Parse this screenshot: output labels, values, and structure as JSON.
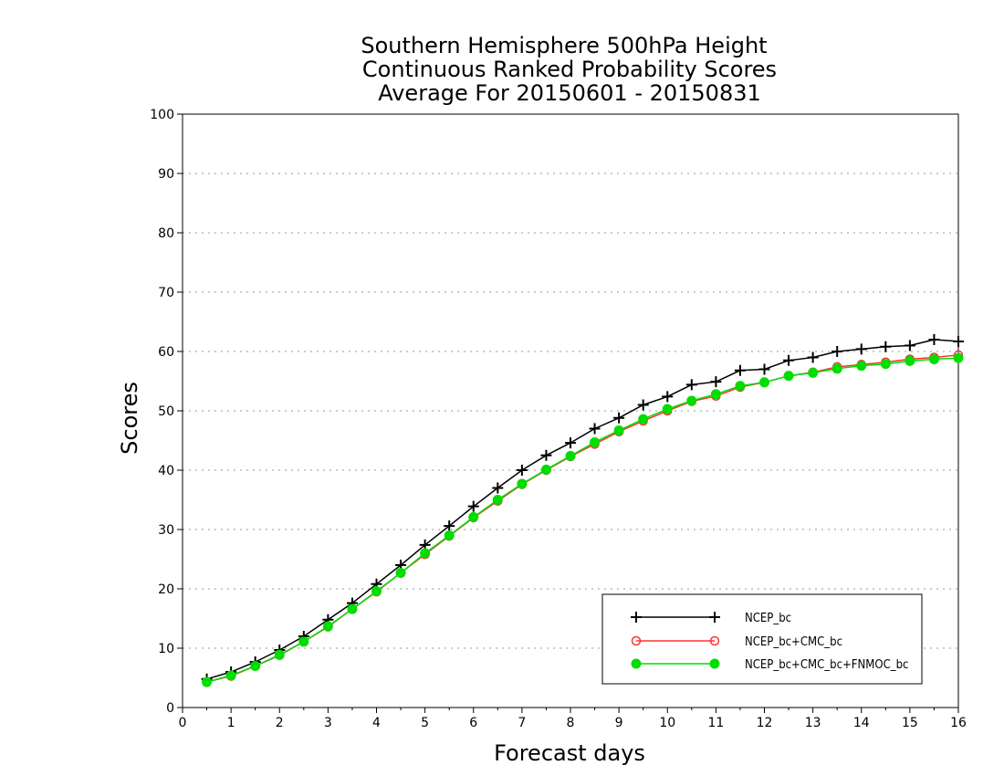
{
  "chart_data": {
    "type": "line",
    "title_lines": [
      "Southern Hemisphere 500hPa Height",
      "Continuous Ranked Probability Scores",
      "Average For 20150601 - 20150831"
    ],
    "xlabel": "Forecast days",
    "ylabel": "Scores",
    "xlim": [
      0,
      16
    ],
    "ylim": [
      0,
      100
    ],
    "xticks": [
      0,
      1,
      2,
      3,
      4,
      5,
      6,
      7,
      8,
      9,
      10,
      11,
      12,
      13,
      14,
      15,
      16
    ],
    "yticks": [
      0,
      10,
      20,
      30,
      40,
      50,
      60,
      70,
      80,
      90,
      100
    ],
    "grid": "horizontal dotted",
    "legend_position": "bottom-right",
    "x": [
      0.5,
      1,
      1.5,
      2,
      2.5,
      3,
      3.5,
      4,
      4.5,
      5,
      5.5,
      6,
      6.5,
      7,
      7.5,
      8,
      8.5,
      9,
      9.5,
      10,
      10.5,
      11,
      11.5,
      12,
      12.5,
      13,
      13.5,
      14,
      14.5,
      15,
      15.5,
      16
    ],
    "series": [
      {
        "name": "NCEP_bc",
        "color": "#000000",
        "marker": "plus",
        "values": [
          4.8,
          6.0,
          7.7,
          9.7,
          12.0,
          14.8,
          17.6,
          20.8,
          24.0,
          27.4,
          30.6,
          33.9,
          37.0,
          40.0,
          42.5,
          44.6,
          47.0,
          48.8,
          51.0,
          52.4,
          54.4,
          54.9,
          56.8,
          57.0,
          58.5,
          59.0,
          60.0,
          60.4,
          60.8,
          61.0,
          62.0,
          61.7
        ]
      },
      {
        "name": "NCEP_bc+CMC_bc",
        "color": "#ff3333",
        "marker": "open-circle",
        "values": [
          4.3,
          5.3,
          7.0,
          8.8,
          11.1,
          13.6,
          16.6,
          19.5,
          22.7,
          25.8,
          28.9,
          32.0,
          34.8,
          37.6,
          40.0,
          42.3,
          44.4,
          46.5,
          48.3,
          50.0,
          51.6,
          52.5,
          54.0,
          54.8,
          55.9,
          56.5,
          57.4,
          57.8,
          58.2,
          58.7,
          59.0,
          59.4
        ]
      },
      {
        "name": "NCEP_bc+CMC_bc+FNMOC_bc",
        "color": "#00dd00",
        "marker": "filled-circle",
        "values": [
          4.3,
          5.4,
          7.0,
          8.9,
          11.1,
          13.7,
          16.6,
          19.6,
          22.7,
          26.0,
          29.0,
          32.1,
          35.0,
          37.7,
          40.1,
          42.4,
          44.7,
          46.7,
          48.6,
          50.3,
          51.7,
          52.8,
          54.2,
          54.8,
          55.9,
          56.4,
          57.1,
          57.6,
          57.9,
          58.4,
          58.7,
          58.9
        ]
      }
    ]
  }
}
